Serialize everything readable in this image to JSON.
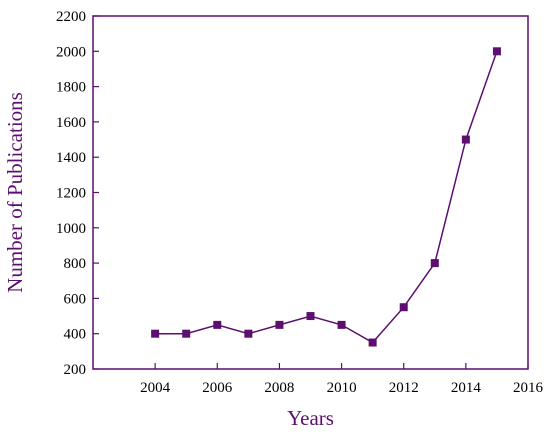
{
  "chart_data": {
    "type": "line",
    "xlabel": "Years",
    "ylabel": "Number of Publications",
    "xlim": [
      2002,
      2016
    ],
    "ylim": [
      200,
      2200
    ],
    "x_ticks": [
      2004,
      2006,
      2008,
      2010,
      2012,
      2014,
      2016
    ],
    "y_ticks": [
      200,
      400,
      600,
      800,
      1000,
      1200,
      1400,
      1600,
      1800,
      2000,
      2200
    ],
    "grid": false,
    "legend": "none",
    "series": [
      {
        "marker": "square",
        "color": "#5c0f6e",
        "x": [
          2004,
          2005,
          2006,
          2007,
          2008,
          2009,
          2010,
          2011,
          2012,
          2013,
          2014,
          2015
        ],
        "y": [
          400,
          400,
          450,
          400,
          450,
          500,
          450,
          350,
          550,
          800,
          1500,
          2000
        ]
      }
    ]
  },
  "colors": {
    "axis": "#5c0f6e",
    "text": "#000000"
  }
}
